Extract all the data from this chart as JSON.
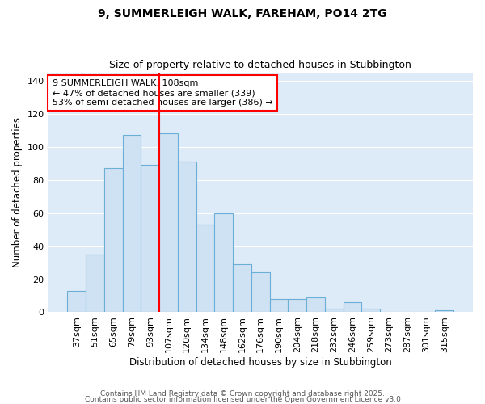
{
  "title1": "9, SUMMERLEIGH WALK, FAREHAM, PO14 2TG",
  "title2": "Size of property relative to detached houses in Stubbington",
  "xlabel": "Distribution of detached houses by size in Stubbington",
  "ylabel": "Number of detached properties",
  "categories": [
    "37sqm",
    "51sqm",
    "65sqm",
    "79sqm",
    "93sqm",
    "107sqm",
    "120sqm",
    "134sqm",
    "148sqm",
    "162sqm",
    "176sqm",
    "190sqm",
    "204sqm",
    "218sqm",
    "232sqm",
    "246sqm",
    "259sqm",
    "273sqm",
    "287sqm",
    "301sqm",
    "315sqm"
  ],
  "values": [
    13,
    35,
    87,
    107,
    89,
    108,
    91,
    53,
    60,
    29,
    24,
    8,
    8,
    9,
    2,
    6,
    2,
    0,
    0,
    0,
    1
  ],
  "bar_color": "#cfe2f3",
  "bar_edge_color": "#6baed6",
  "vline_x_index": 5,
  "vline_color": "red",
  "annotation_label": "9 SUMMERLEIGH WALK: 108sqm",
  "annotation_line1": "← 47% of detached houses are smaller (339)",
  "annotation_line2": "53% of semi-detached houses are larger (386) →",
  "annotation_box_color": "white",
  "annotation_box_edge": "red",
  "footer1": "Contains HM Land Registry data © Crown copyright and database right 2025.",
  "footer2": "Contains public sector information licensed under the Open Government Licence v3.0",
  "ylim": [
    0,
    145
  ],
  "yticks": [
    0,
    20,
    40,
    60,
    80,
    100,
    120,
    140
  ],
  "background_color": "#ddeaf7",
  "fig_bg": "#ffffff"
}
